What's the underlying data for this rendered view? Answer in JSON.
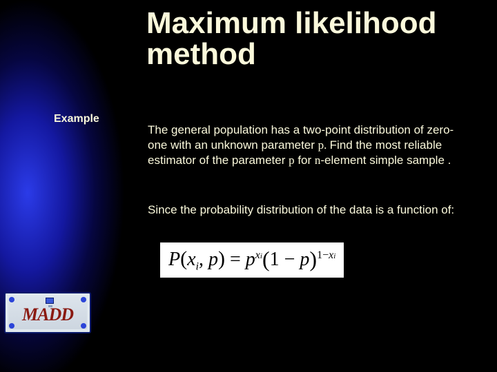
{
  "background_color": "#000000",
  "text_color": "#fbf9db",
  "sidebar": {
    "gradient_center_color": "#2b3be8",
    "gradient_mid_color": "#1418a0",
    "gradient_outer_color": "#060640"
  },
  "title": {
    "text": "Maximum likelihood method",
    "fontsize": 44,
    "weight": "bold"
  },
  "example_label": "Example",
  "body": {
    "para1_part1": "The general population has a two-point distribution of zero-one with an unknown parameter ",
    "para1_p1": "p. ",
    "para1_part2": "Find the most reliable estimator of the parameter  ",
    "para1_p2": "p",
    "para1_part3": " for ",
    "para1_n": "n",
    "para1_part4": "-element simple sample .",
    "para2": "Since the probability distribution of the data is a function of:"
  },
  "formula": {
    "background": "#ffffff",
    "text_color": "#000000",
    "P": "P",
    "open1": "(",
    "x": "x",
    "i": "i",
    "comma": ", ",
    "p": "p",
    "close1": ")",
    "eq": " = ",
    "p2": "p",
    "exp_x": "x",
    "exp_i": "i",
    "open2": "(",
    "one": "1",
    "minus": " − ",
    "p3": "p",
    "close2": ")",
    "exp_one": "1",
    "exp_minus": "−",
    "exp_x2": "x",
    "exp_i2": "i"
  },
  "logo": {
    "text": "MADD",
    "border_color": "#0a1a6a",
    "bg_color": "#e0e8ee",
    "dot_color": "#2b44d8",
    "text_color": "#8a1a12"
  }
}
